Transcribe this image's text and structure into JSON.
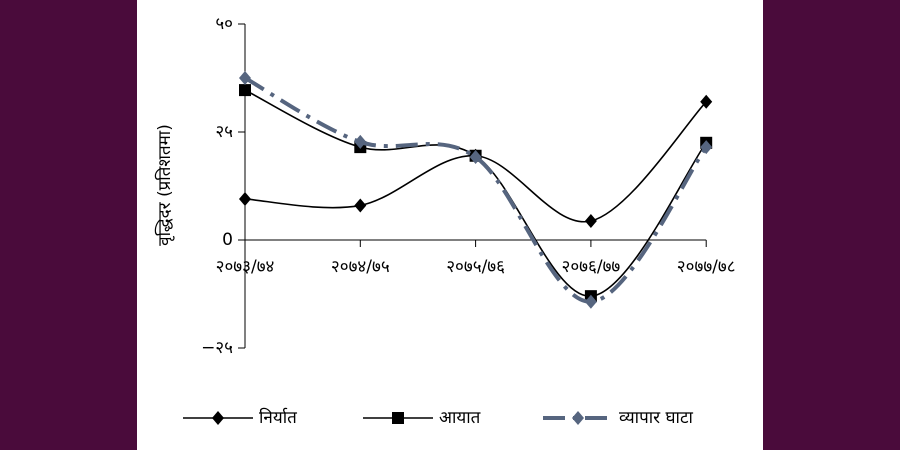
{
  "chart_data": {
    "type": "line",
    "y_label": "वृद्धिदर (प्रतिशतमा)",
    "categories": [
      "२०७३/७४",
      "२०७४/७५",
      "२०७५/७६",
      "२०७६/७७",
      "२०७७/७८"
    ],
    "series": [
      {
        "name": "निर्यात",
        "color": "#000000",
        "marker": "diamond",
        "dash": "solid",
        "values": [
          9.5,
          8,
          19.5,
          4.4,
          32
        ]
      },
      {
        "name": "आयात",
        "color": "#000000",
        "marker": "square",
        "dash": "solid",
        "values": [
          34.7,
          21.5,
          19.5,
          -13,
          22.5
        ]
      },
      {
        "name": "व्यापार घाटा",
        "color": "#56657f",
        "marker": "diamond",
        "dash": "dashdot",
        "values": [
          37.5,
          22.7,
          19.2,
          -14.3,
          21.5
        ]
      }
    ],
    "ylim": [
      -25,
      50
    ],
    "yticks": [
      {
        "value": -25,
        "label": "−२५"
      },
      0,
      {
        "value": 25,
        "label": "२५"
      },
      {
        "value": 50,
        "label": "५०"
      }
    ],
    "smooth": true,
    "legend": "bottom"
  }
}
